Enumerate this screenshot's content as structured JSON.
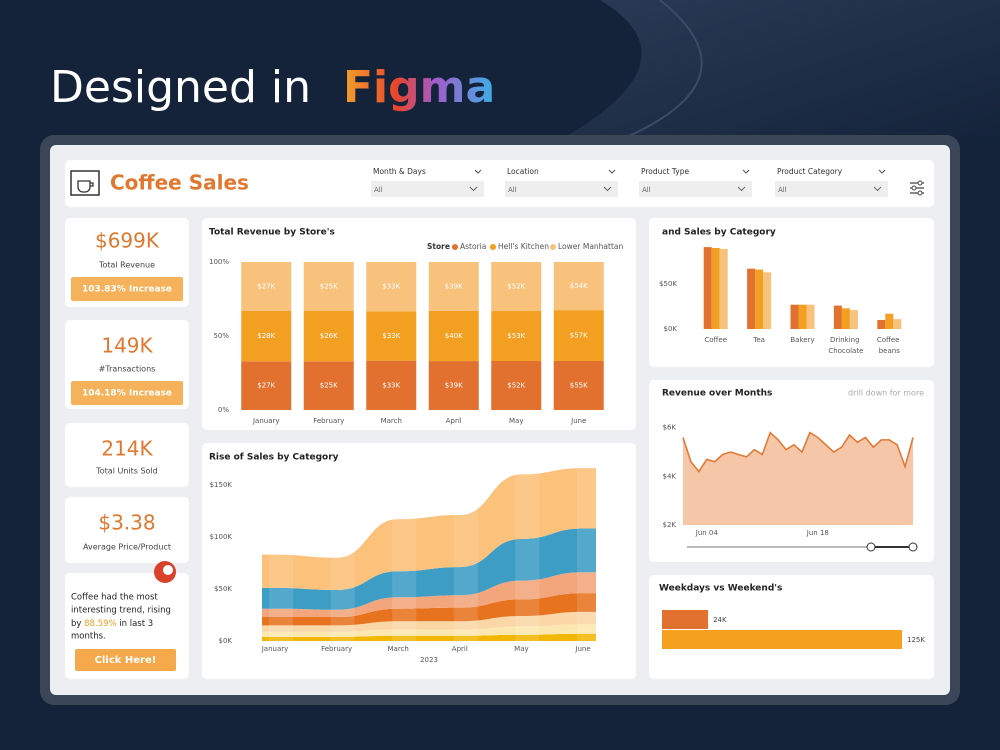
{
  "heading": {
    "prefix": "Designed in",
    "brand": "Figma"
  },
  "header": {
    "title": "Coffee Sales",
    "filters": [
      {
        "label": "Month & Days",
        "value": "All"
      },
      {
        "label": "Location",
        "value": "All"
      },
      {
        "label": "Product Type",
        "value": "All"
      },
      {
        "label": "Product Category",
        "value": "All"
      }
    ]
  },
  "kpis": [
    {
      "value": "$699K",
      "label": "Total Revenue",
      "badge": "103.83% Increase"
    },
    {
      "value": "149K",
      "label": "#Transactions",
      "badge": "104.18% Increase"
    },
    {
      "value": "214K",
      "label": "Total Units Sold"
    },
    {
      "value": "$3.38",
      "label": "Average Price/Product"
    }
  ],
  "insight": {
    "lines": [
      "Coffee had the most",
      "interesting trend, rising"
    ],
    "pre": "by ",
    "highlight": "88.59%",
    "post": " in last 3",
    "last": "months.",
    "button": "Click Here!"
  },
  "chart_data": [
    {
      "type": "bar",
      "stacking": "percent",
      "title": "Total Revenue by Store's",
      "legend_title": "Store",
      "legend": "top-right",
      "categories": [
        "January",
        "February",
        "March",
        "April",
        "May",
        "June"
      ],
      "series": [
        {
          "name": "Astoria",
          "color": "#e2702e",
          "values": [
            27000,
            25000,
            33000,
            39000,
            52000,
            55000
          ],
          "value_labels": [
            "$27K",
            "$25K",
            "$33K",
            "$39K",
            "$52K",
            "$55K"
          ]
        },
        {
          "name": "Hell's Kitchen",
          "color": "#f29f22",
          "values": [
            28000,
            26000,
            33000,
            40000,
            53000,
            57000
          ],
          "value_labels": [
            "$28K",
            "$26K",
            "$33K",
            "$40K",
            "$53K",
            "$57K"
          ]
        },
        {
          "name": "Lower Manhattan",
          "color": "#f8c17c",
          "values": [
            27000,
            25000,
            33000,
            39000,
            52000,
            54000
          ],
          "value_labels": [
            "$27K",
            "$25K",
            "$33K",
            "$39K",
            "$52K",
            "$54K"
          ]
        }
      ],
      "ylim": [
        0,
        100
      ],
      "yticks": [
        {
          "value": 0,
          "label": "0%"
        },
        {
          "value": 50,
          "label": "50%"
        },
        {
          "value": 100,
          "label": "100%"
        }
      ]
    },
    {
      "type": "bar",
      "title": "and Sales by Category",
      "categories": [
        "Coffee",
        "Tea",
        "Bakery",
        "Drinking Chocolate",
        "Coffee beans"
      ],
      "series": [
        {
          "color": "#e2702e",
          "values": [
            91000,
            67000,
            27000,
            26000,
            10000
          ]
        },
        {
          "color": "#f29f22",
          "values": [
            90000,
            66000,
            27000,
            23000,
            17000
          ]
        },
        {
          "color": "#f8c17c",
          "values": [
            89000,
            63000,
            27000,
            21000,
            11000
          ]
        }
      ],
      "ylim": [
        0,
        100000
      ],
      "yticks": [
        {
          "value": 0,
          "label": "$0K"
        },
        {
          "value": 50000,
          "label": "$50K"
        }
      ]
    },
    {
      "type": "area",
      "stacking": "normal",
      "title": "Rise of Sales by Category",
      "xlabel": "2023",
      "categories": [
        "January",
        "February",
        "March",
        "April",
        "May",
        "June"
      ],
      "series": [
        {
          "color": "#f2b705",
          "values": [
            4000,
            4000,
            5000,
            5000,
            6000,
            7000
          ]
        },
        {
          "color": "#fde7b0",
          "values": [
            5000,
            5000,
            6000,
            6000,
            8000,
            9000
          ]
        },
        {
          "color": "#fbd6a6",
          "values": [
            6000,
            6000,
            8000,
            8000,
            10000,
            12000
          ]
        },
        {
          "color": "#e8731f",
          "values": [
            8000,
            8000,
            12000,
            13000,
            16000,
            18000
          ]
        },
        {
          "color": "#f3a57c",
          "values": [
            8000,
            7000,
            11000,
            12000,
            18000,
            20000
          ]
        },
        {
          "color": "#3d9dc5",
          "values": [
            20000,
            19000,
            25000,
            27000,
            40000,
            42000
          ]
        },
        {
          "color": "#fcc17a",
          "values": [
            32000,
            31000,
            50000,
            50000,
            62000,
            58000
          ]
        }
      ],
      "ylim": [
        0,
        170000
      ],
      "yticks": [
        {
          "value": 0,
          "label": "$0K"
        },
        {
          "value": 50000,
          "label": "$50K"
        },
        {
          "value": 100000,
          "label": "$100K"
        },
        {
          "value": 150000,
          "label": "$150K"
        }
      ]
    },
    {
      "type": "area",
      "title": "Revenue over Months",
      "subtitle": "drill down for more",
      "color": "#e07a37",
      "fill": "#f6c6a8",
      "x": [
        1,
        2,
        3,
        4,
        5,
        6,
        7,
        8,
        9,
        10,
        11,
        12,
        13,
        14,
        15,
        16,
        17,
        18,
        19,
        20,
        21,
        22,
        23,
        24,
        25,
        26,
        27,
        28,
        29,
        30
      ],
      "values": [
        5600,
        4600,
        4200,
        4700,
        4600,
        4900,
        5000,
        4900,
        4800,
        5100,
        4900,
        5800,
        5500,
        5100,
        5300,
        5000,
        5800,
        5600,
        5300,
        5000,
        5200,
        5700,
        5400,
        5600,
        5200,
        5500,
        5500,
        5300,
        4400,
        5600
      ],
      "xlim": [
        1,
        30
      ],
      "xticks": [
        {
          "value": 4,
          "label": "Jun 04"
        },
        {
          "value": 18,
          "label": "Jun 18"
        }
      ],
      "ylim": [
        2000,
        6400
      ],
      "yticks": [
        {
          "value": 2000,
          "label": "$2K"
        },
        {
          "value": 4000,
          "label": "$4K"
        },
        {
          "value": 6000,
          "label": "$6K"
        }
      ]
    },
    {
      "type": "bar",
      "orientation": "horizontal",
      "title": "Weekdays vs Weekend's",
      "values": [
        24000,
        125000
      ],
      "value_labels": [
        "24K",
        "125K"
      ],
      "colors": [
        "#e2702e",
        "#f5a11f"
      ],
      "xlim": [
        0,
        125000
      ]
    }
  ]
}
